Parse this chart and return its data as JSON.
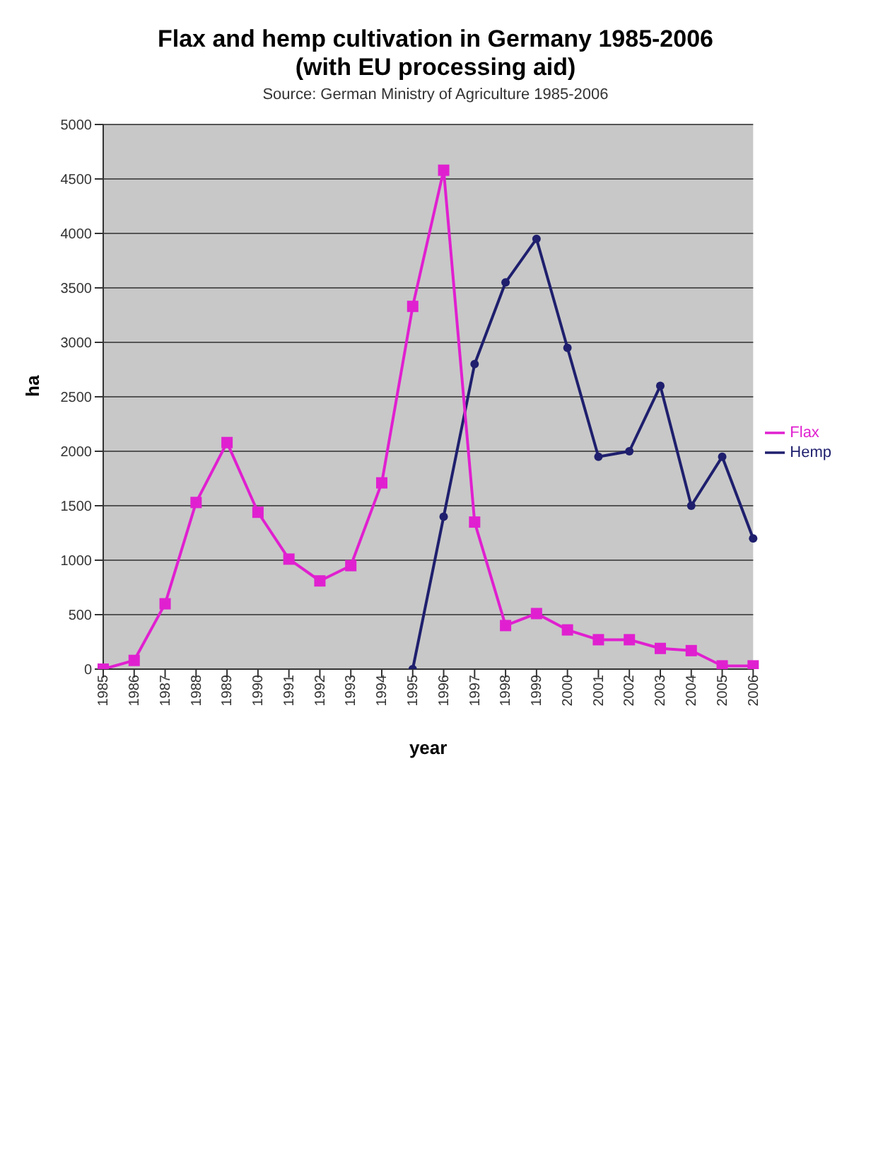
{
  "chart_data": {
    "type": "line",
    "title": "Flax and hemp cultivation in Germany 1985-2006",
    "subtitle": "(with EU processing aid)",
    "annotations": [
      "Source: German Ministry of Agriculture 1985-2006"
    ],
    "xlabel": "year",
    "ylabel": "ha",
    "categories": [
      "1985",
      "1986",
      "1987",
      "1988",
      "1989",
      "1990",
      "1991",
      "1992",
      "1993",
      "1994",
      "1995",
      "1996",
      "1997",
      "1998",
      "1999",
      "2000",
      "2001",
      "2002",
      "2003",
      "2004",
      "2005",
      "2006"
    ],
    "series": [
      {
        "name": "Hemp",
        "color": "#1f1f6e",
        "marker": "circle",
        "values": [
          null,
          null,
          null,
          null,
          null,
          null,
          null,
          null,
          null,
          null,
          0,
          1400,
          2800,
          3550,
          3950,
          2950,
          1950,
          2000,
          2600,
          1500,
          1950,
          1200
        ]
      },
      {
        "name": "Flax",
        "color": "#e020d0",
        "marker": "square",
        "values": [
          0,
          80,
          600,
          1530,
          2080,
          1440,
          1010,
          810,
          950,
          1710,
          3330,
          4580,
          1350,
          400,
          510,
          360,
          270,
          270,
          190,
          170,
          30,
          30
        ]
      }
    ],
    "ylim": [
      0,
      5000
    ],
    "yticks": [
      0,
      500,
      1000,
      1500,
      2000,
      2500,
      3000,
      3500,
      4000,
      4500,
      5000
    ],
    "grid": "y",
    "legend": "right"
  }
}
